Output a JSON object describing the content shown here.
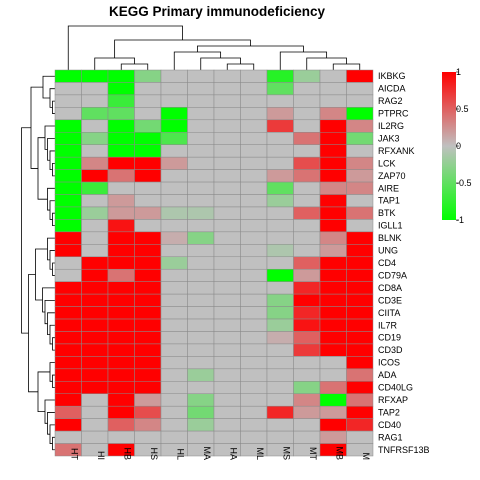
{
  "chart_data": {
    "type": "heatmap",
    "title": "KEGG Primary immunodeficiency",
    "columns": [
      "HT",
      "HI",
      "HB",
      "HS",
      "HL",
      "MA",
      "HA",
      "ML",
      "MS",
      "MT",
      "MB",
      "M"
    ],
    "rows": [
      "IKBKG",
      "AICDA",
      "RAG2",
      "PTPRC",
      "IL2RG",
      "JAK3",
      "RFXANK",
      "LCK",
      "ZAP70",
      "AIRE",
      "TAP1",
      "BTK",
      "IGLL1",
      "BLNK",
      "UNG",
      "CD4",
      "CD79A",
      "CD8A",
      "CD3E",
      "CIITA",
      "IL7R",
      "CD19",
      "CD3D",
      "ICOS",
      "ADA",
      "CD40LG",
      "RFXAP",
      "TAP2",
      "CD40",
      "RAG1",
      "TNFRSF13B"
    ],
    "values": [
      [
        -1,
        -1,
        -1,
        -0.3,
        0,
        0,
        0,
        0,
        -0.8,
        -0.2,
        0,
        1
      ],
      [
        0,
        0,
        -1,
        0,
        0,
        0,
        0,
        0,
        -0.5,
        0,
        0,
        0
      ],
      [
        0,
        0,
        -0.7,
        0,
        0,
        0,
        0,
        0,
        0,
        0,
        0,
        0
      ],
      [
        0,
        -0.5,
        -0.5,
        0,
        -1,
        0,
        0,
        0,
        0.2,
        0,
        0.3,
        -1
      ],
      [
        -1,
        0,
        -1,
        -0.4,
        -1,
        0,
        0,
        0,
        0.7,
        0,
        1,
        0.3
      ],
      [
        -1,
        -0.3,
        -1,
        -1,
        -0.6,
        0,
        0,
        0,
        0,
        0.4,
        1,
        -0.4
      ],
      [
        -1,
        0,
        -1,
        -1,
        0,
        0,
        0,
        0,
        0,
        0,
        1,
        0
      ],
      [
        -1,
        0.3,
        1,
        1,
        0.2,
        0,
        0,
        0,
        0,
        0.6,
        1,
        0.3
      ],
      [
        -1,
        1,
        0.4,
        1,
        0,
        0,
        0,
        0,
        0.2,
        0.4,
        1,
        0.2
      ],
      [
        -1,
        -0.7,
        0,
        0,
        0,
        0,
        0,
        0,
        -0.5,
        0,
        0.3,
        0.3
      ],
      [
        -1,
        0,
        0.2,
        0,
        0,
        0,
        0,
        0,
        -0.2,
        0,
        1,
        0
      ],
      [
        -1,
        -0.2,
        0.2,
        0.2,
        -0.1,
        -0.1,
        0,
        0,
        0,
        0.5,
        1,
        0.4
      ],
      [
        -1,
        0,
        0.9,
        0,
        0,
        0,
        0,
        0,
        0,
        0,
        1,
        0
      ],
      [
        1,
        0,
        1,
        1,
        0.1,
        -0.3,
        0,
        0,
        0,
        0,
        0.3,
        1
      ],
      [
        1,
        0,
        1,
        1,
        0,
        0,
        0,
        0,
        -0.1,
        0,
        0.2,
        1
      ],
      [
        0,
        1,
        1,
        1,
        -0.2,
        0,
        0,
        0,
        0,
        0.5,
        1,
        1
      ],
      [
        0,
        1,
        0.4,
        1,
        0,
        0,
        0,
        0,
        -1,
        0.2,
        1,
        1
      ],
      [
        1,
        1,
        1,
        1,
        0,
        0,
        0,
        0,
        0,
        0.8,
        1,
        1
      ],
      [
        1,
        1,
        1,
        1,
        0,
        0,
        0,
        0,
        -0.3,
        1,
        1,
        1
      ],
      [
        1,
        1,
        1,
        1,
        0,
        0,
        0,
        0,
        -0.3,
        0.8,
        1,
        1
      ],
      [
        1,
        1,
        1,
        1,
        0,
        0,
        0,
        0,
        -0.2,
        0.9,
        1,
        1
      ],
      [
        1,
        1,
        1,
        1,
        0,
        0,
        0,
        0,
        0.1,
        0.5,
        1,
        1
      ],
      [
        1,
        1,
        1,
        1,
        0,
        0,
        0,
        0,
        0,
        0.7,
        1,
        1
      ],
      [
        1,
        1,
        1,
        1,
        0,
        0,
        0,
        0,
        0,
        0,
        0,
        1
      ],
      [
        1,
        1,
        1,
        1,
        0,
        -0.2,
        0,
        0,
        0,
        0,
        0,
        0.4
      ],
      [
        1,
        1,
        1,
        1,
        0,
        0,
        0,
        0,
        0,
        -0.3,
        0.4,
        1
      ],
      [
        1,
        0,
        1,
        0.2,
        0,
        -0.3,
        0,
        0,
        0,
        0.3,
        -1,
        0.4
      ],
      [
        0.5,
        0,
        1,
        0.6,
        0,
        -0.4,
        0,
        0,
        0.8,
        0.2,
        0.2,
        1
      ],
      [
        1,
        0,
        0.5,
        0.3,
        0,
        -0.2,
        0,
        0,
        0,
        0,
        1,
        0.8
      ],
      [
        0,
        0,
        0,
        0,
        0,
        0,
        0,
        0,
        0,
        0,
        0.2,
        0
      ],
      [
        0.4,
        0,
        1,
        0,
        0,
        0,
        0,
        0,
        0,
        0,
        1,
        0
      ]
    ],
    "color_scale": {
      "min": -1,
      "max": 1,
      "low": "#00ff00",
      "mid": "#c0c0c0",
      "high": "#ff0000"
    },
    "legend_ticks": [
      "1",
      "0.5",
      "0",
      "-0.5",
      "-1"
    ],
    "legend_position": "right",
    "row_dendrogram": true,
    "column_dendrogram": true
  }
}
